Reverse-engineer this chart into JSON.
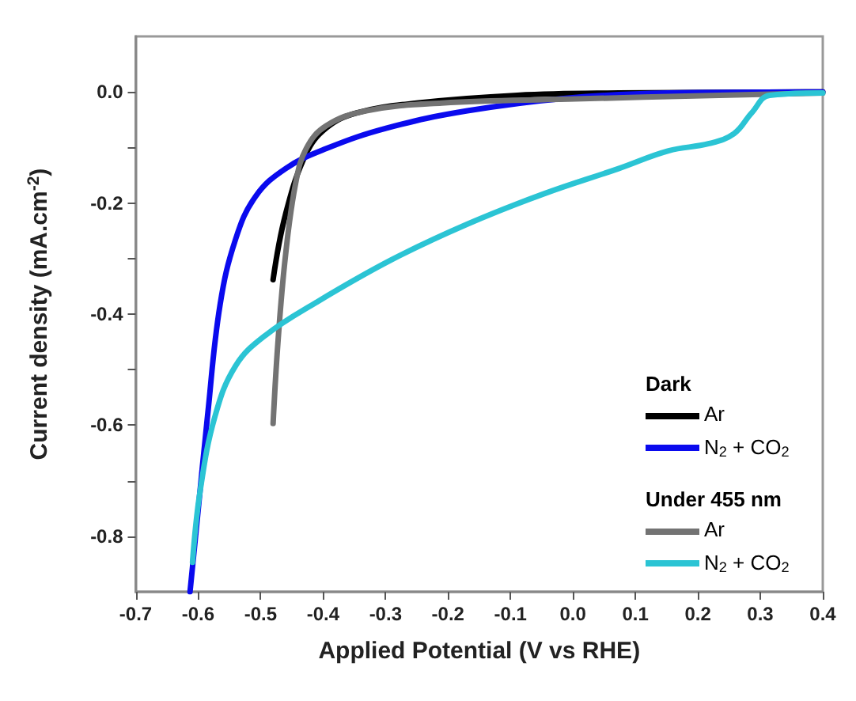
{
  "chart_data": {
    "type": "line",
    "xlabel": "Applied Potential (V vs RHE)",
    "ylabel": "Current density (mA.cm$^{-2}$)",
    "xlim": [
      -0.7,
      0.4
    ],
    "ylim": [
      -0.9,
      0.1
    ],
    "xticks": [
      -0.7,
      -0.6,
      -0.5,
      -0.4,
      -0.3,
      -0.2,
      -0.1,
      {
        "value": 0,
        "label": "0.0"
      },
      0.1,
      0.2,
      0.3,
      0.4
    ],
    "yticks": [
      -0.8,
      {
        "value": -0.7,
        "label": null
      },
      -0.6,
      {
        "value": -0.5,
        "label": null
      },
      -0.4,
      {
        "value": -0.3,
        "label": null
      },
      -0.2,
      {
        "value": -0.1,
        "label": null
      },
      {
        "value": 0,
        "label": "0.0"
      }
    ],
    "grid": false,
    "legend": "bottom right",
    "marker": "none",
    "line_style": "solid",
    "annotations": [
      "Dark",
      "Under 455 nm"
    ],
    "series": [
      {
        "name": "Ar",
        "color": "#000000",
        "x": [
          -0.48,
          -0.46,
          -0.427,
          -0.395,
          -0.347,
          -0.25,
          -0.089,
          0.073,
          0.4
        ],
        "values": [
          -0.338,
          -0.22,
          -0.111,
          -0.065,
          -0.038,
          -0.02,
          -0.006,
          -0.002,
          0
        ]
      },
      {
        "name": "N$_{2}$ + CO$_{2}$",
        "color": "#0a0aee",
        "x": [
          -0.613,
          -0.601,
          -0.585,
          -0.565,
          -0.54,
          -0.508,
          -0.46,
          -0.395,
          -0.298,
          -0.169,
          -0.008,
          0.153,
          0.4
        ],
        "values": [
          -0.9,
          -0.765,
          -0.584,
          -0.384,
          -0.265,
          -0.188,
          -0.138,
          -0.102,
          -0.065,
          -0.034,
          -0.011,
          -0.002,
          0
        ]
      },
      {
        "name": "Ar",
        "color": "#737373",
        "x": [
          -0.48,
          -0.472,
          -0.46,
          -0.444,
          -0.427,
          -0.395,
          -0.331,
          -0.21,
          -0.008,
          0.234,
          0.4
        ],
        "values": [
          -0.597,
          -0.447,
          -0.293,
          -0.165,
          -0.102,
          -0.061,
          -0.034,
          -0.02,
          -0.013,
          -0.006,
          -0.002
        ]
      },
      {
        "name": "N$_{2}$ + CO$_{2}$",
        "color": "#2bc4d4",
        "x": [
          -0.609,
          -0.597,
          -0.573,
          -0.54,
          -0.492,
          -0.411,
          -0.29,
          -0.169,
          -0.048,
          0.073,
          0.153,
          0.218,
          0.258,
          0.286,
          0.315,
          0.4
        ],
        "values": [
          -0.847,
          -0.72,
          -0.584,
          -0.493,
          -0.438,
          -0.379,
          -0.302,
          -0.238,
          -0.184,
          -0.138,
          -0.106,
          -0.093,
          -0.075,
          -0.038,
          -0.006,
          -0.002
        ]
      }
    ]
  }
}
